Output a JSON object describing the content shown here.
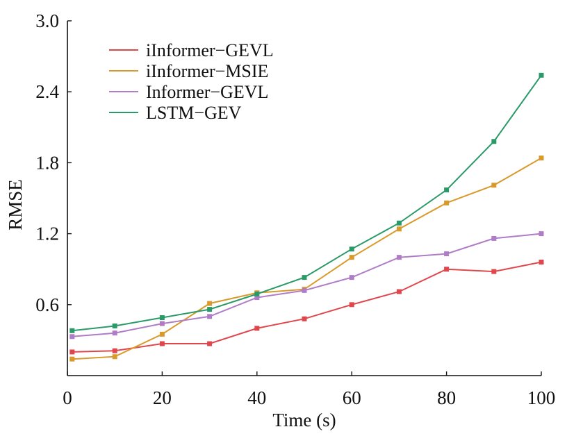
{
  "chart_data": {
    "type": "line",
    "title": "",
    "xlabel": "Time (s)",
    "ylabel": "RMSE",
    "xlim": [
      0,
      100
    ],
    "ylim": [
      0.0,
      3.0
    ],
    "xticks": [
      0,
      20,
      40,
      60,
      80,
      100
    ],
    "xtick_labels": [
      "0",
      "20",
      "40",
      "60",
      "80",
      "100"
    ],
    "yticks": [
      0.6,
      1.2,
      1.8,
      2.4,
      3.0
    ],
    "ytick_labels": [
      "0.6",
      "1.2",
      "1.8",
      "2.4",
      "3.0"
    ],
    "grid": false,
    "legend_position": "top-left",
    "x": [
      1,
      10,
      20,
      30,
      40,
      50,
      60,
      70,
      80,
      90,
      100
    ],
    "series": [
      {
        "name": "iInformer−GEVL",
        "color": "#e0474c",
        "values": [
          0.2,
          0.21,
          0.27,
          0.27,
          0.4,
          0.48,
          0.6,
          0.71,
          0.9,
          0.88,
          0.96
        ]
      },
      {
        "name": "iInformer−MSIE",
        "color": "#d99a2b",
        "values": [
          0.14,
          0.16,
          0.35,
          0.61,
          0.7,
          0.73,
          1.0,
          1.24,
          1.46,
          1.61,
          1.84
        ]
      },
      {
        "name": "Informer−GEVL",
        "color": "#b07cc6",
        "values": [
          0.33,
          0.36,
          0.44,
          0.5,
          0.66,
          0.72,
          0.83,
          1.0,
          1.03,
          1.16,
          1.2
        ]
      },
      {
        "name": "LSTM−GEV",
        "color": "#2a9a68",
        "values": [
          0.38,
          0.42,
          0.49,
          0.56,
          0.69,
          0.83,
          1.07,
          1.29,
          1.57,
          1.98,
          2.54
        ]
      }
    ]
  }
}
